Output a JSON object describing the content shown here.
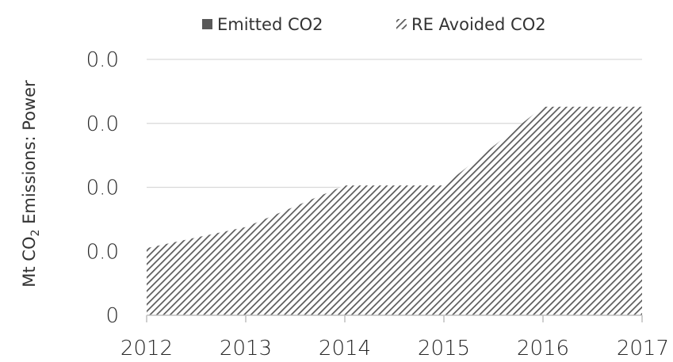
{
  "chart_data": {
    "type": "area",
    "categories": [
      "2012",
      "2013",
      "2014",
      "2015",
      "2016",
      "2017"
    ],
    "x": [
      2012,
      2013,
      2014,
      2015,
      2016,
      2017
    ],
    "series": [
      {
        "name": "Emitted CO2",
        "values": [
          0,
          0,
          0,
          0,
          0,
          0
        ],
        "color": "#595959",
        "fill": "solid"
      },
      {
        "name": "RE Avoided CO2",
        "values": [
          0.0105,
          0.0138,
          0.0203,
          0.0203,
          0.0326,
          0.0326
        ],
        "color": "#595959",
        "fill": "hatch"
      }
    ],
    "ylabel_main": "Mt CO",
    "ylabel_sub": "2",
    "ylabel_rest": " Emissions: Power",
    "y_ticks": [
      {
        "value": 0,
        "label": "0"
      },
      {
        "value": 0.01,
        "label": "0.0"
      },
      {
        "value": 0.02,
        "label": "0.0"
      },
      {
        "value": 0.03,
        "label": "0.0"
      },
      {
        "value": 0.04,
        "label": "0.0"
      }
    ],
    "ylim": [
      0,
      0.04
    ],
    "grid": true,
    "legend_position": "top"
  }
}
